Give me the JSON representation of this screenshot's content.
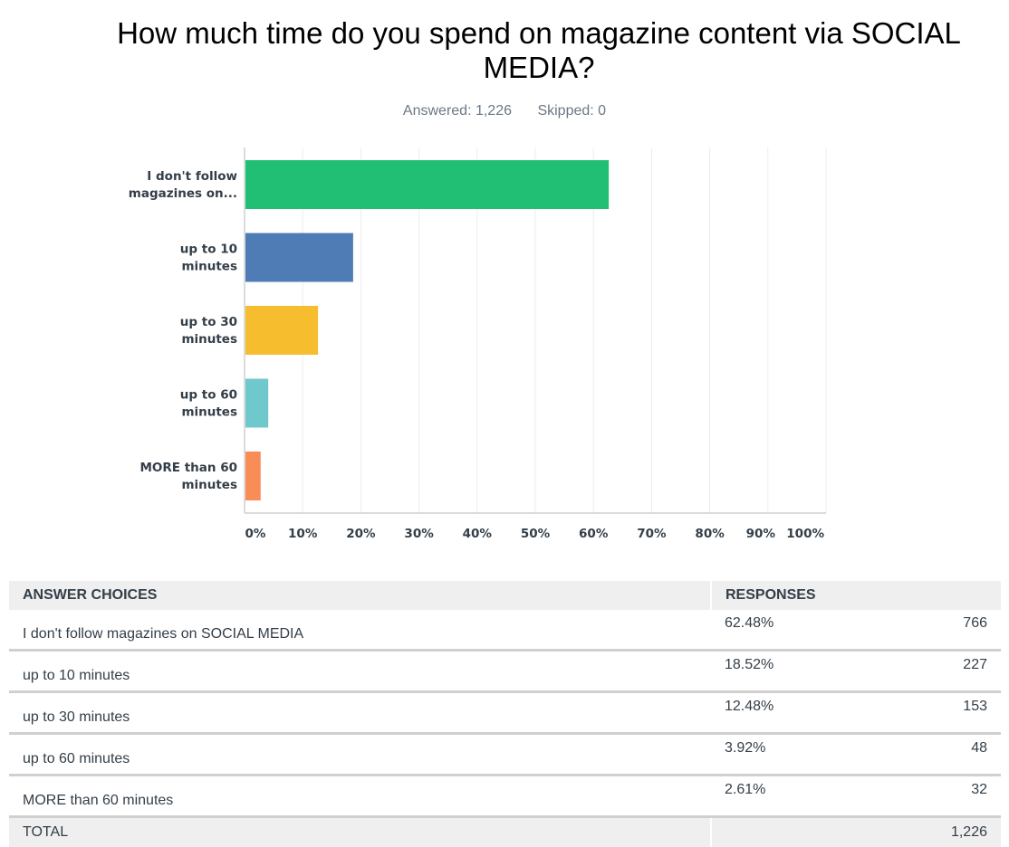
{
  "chart_data": {
    "type": "bar",
    "orientation": "horizontal",
    "title": "How much time do you spend on magazine content via SOCIAL MEDIA?",
    "categories": [
      "I don't follow magazines on...",
      "up to 10 minutes",
      "up to 30 minutes",
      "up to 60 minutes",
      "MORE than 60 minutes"
    ],
    "category_lines": [
      [
        "I don't follow",
        "magazines on..."
      ],
      [
        "up to 10",
        "minutes"
      ],
      [
        "up to 30",
        "minutes"
      ],
      [
        "up to 60",
        "minutes"
      ],
      [
        "MORE than 60",
        "minutes"
      ]
    ],
    "values": [
      62.48,
      18.52,
      12.48,
      3.92,
      2.61
    ],
    "colors": [
      "#21bf73",
      "#507cb6",
      "#f6bd2f",
      "#6fc8cb",
      "#f98d58"
    ],
    "xlim": [
      0,
      100
    ],
    "xticks": [
      "0%",
      "10%",
      "20%",
      "30%",
      "40%",
      "50%",
      "60%",
      "70%",
      "80%",
      "90%",
      "100%"
    ],
    "grid": true,
    "xlabel": "",
    "ylabel": ""
  },
  "header": {
    "title": "How much time do you spend on magazine content via SOCIAL MEDIA?",
    "answered": "Answered: 1,226",
    "skipped": "Skipped: 0"
  },
  "table": {
    "col_choices": "ANSWER CHOICES",
    "col_responses": "RESPONSES",
    "rows": [
      {
        "choice": "I don't follow magazines on SOCIAL MEDIA",
        "percent": "62.48%",
        "count": "766"
      },
      {
        "choice": "up to 10 minutes",
        "percent": "18.52%",
        "count": "227"
      },
      {
        "choice": "up to 30 minutes",
        "percent": "12.48%",
        "count": "153"
      },
      {
        "choice": "up to 60 minutes",
        "percent": "3.92%",
        "count": "48"
      },
      {
        "choice": "MORE than 60 minutes",
        "percent": "2.61%",
        "count": "32"
      }
    ],
    "total_label": "TOTAL",
    "total_count": "1,226"
  }
}
